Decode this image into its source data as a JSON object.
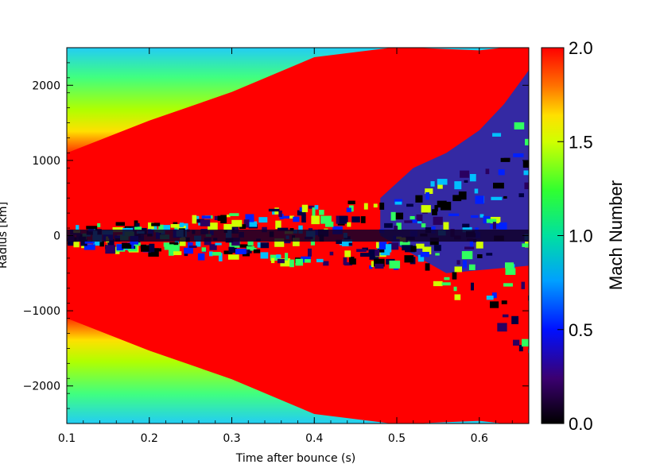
{
  "chart_data": {
    "type": "heatmap",
    "title": "",
    "xlabel": "Time after bounce (s)",
    "ylabel": "Radius [km]",
    "xlim": [
      0.1,
      0.66
    ],
    "ylim": [
      -2500,
      2500
    ],
    "x_ticks": [
      0.1,
      0.2,
      0.3,
      0.4,
      0.5,
      0.6
    ],
    "x_tick_labels": [
      "0.1",
      "0.2",
      "0.3",
      "0.4",
      "0.5",
      "0.6"
    ],
    "y_ticks": [
      2000,
      1000,
      0,
      -1000,
      -2000
    ],
    "y_tick_labels": [
      "2000",
      "1000",
      "0",
      "−1000",
      "−2000"
    ],
    "colorbar": {
      "label": "Mach Number",
      "range": [
        0.0,
        2.0
      ],
      "ticks": [
        0.0,
        0.5,
        1.0,
        1.5,
        2.0
      ],
      "tick_labels": [
        "0.0",
        "0.5",
        "1.0",
        "1.5",
        "2.0"
      ],
      "colormap": [
        "#000000",
        "#4b0082",
        "#0000ff",
        "#00bfff",
        "#00ff80",
        "#80ff00",
        "#ffff00",
        "#ff8000",
        "#ff0000"
      ]
    },
    "features": {
      "supersonic_boundary_t": [
        0.1,
        0.2,
        0.3,
        0.4,
        0.5,
        0.6,
        0.66
      ],
      "supersonic_boundary_r": [
        1100,
        1500,
        1950,
        2350,
        2500,
        2500,
        2500
      ],
      "shock_front_t": [
        0.48,
        0.52,
        0.56,
        0.6,
        0.63,
        0.66
      ],
      "shock_front_r": [
        500,
        900,
        1100,
        1400,
        1750,
        2200
      ],
      "subsonic_plume_t_range": [
        0.1,
        0.66
      ]
    },
    "grid": false,
    "legend": "none"
  }
}
